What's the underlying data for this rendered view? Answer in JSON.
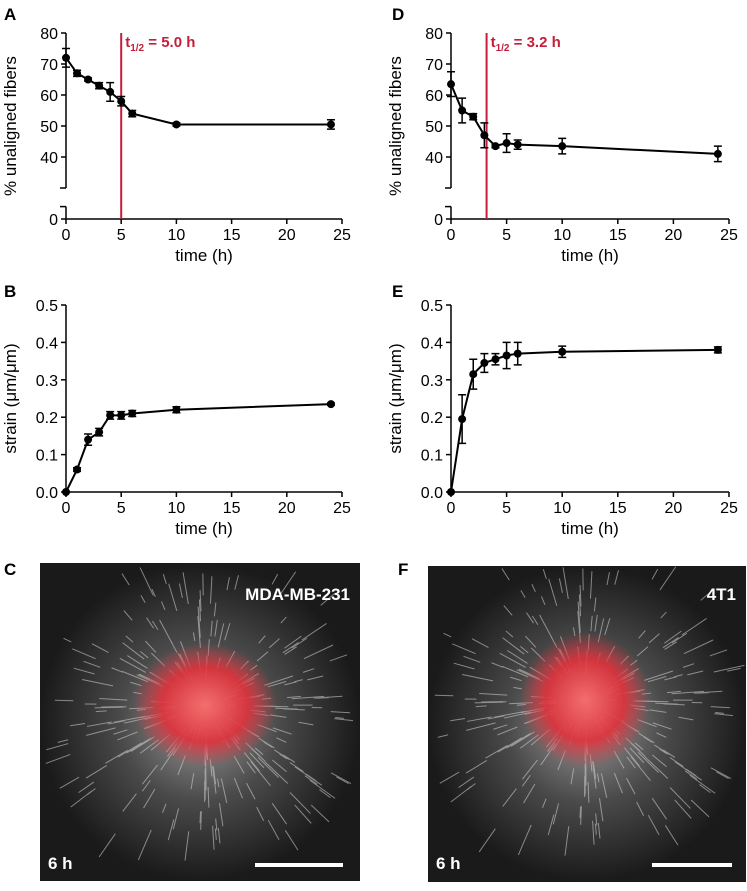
{
  "chart_data": [
    {
      "type": "line",
      "panel": "A",
      "x_label": "time (h)",
      "y_label": "% unaligned fibers",
      "color": "#000000",
      "x": [
        0,
        1,
        2,
        3,
        4,
        5,
        6,
        10,
        24
      ],
      "values": [
        72,
        67,
        65,
        63,
        61,
        58,
        54,
        50.5,
        50.5
      ],
      "errors": [
        3,
        1,
        0.5,
        1,
        3,
        1.5,
        1,
        0.5,
        1.5
      ],
      "xlim": [
        0,
        25
      ],
      "xticks": [
        0,
        5,
        10,
        15,
        20,
        25
      ],
      "ylim": [
        0,
        80
      ],
      "yticks": [
        0,
        40,
        50,
        60,
        70,
        80
      ],
      "axis_break": true,
      "annotation": {
        "label": "t",
        "subscript": "1/2",
        "suffix": " = 5.0 h",
        "x": 5,
        "color": "#c41e3a"
      }
    },
    {
      "type": "line",
      "panel": "B",
      "x_label": "time (h)",
      "y_label": "strain (μm/μm)",
      "color": "#000000",
      "x": [
        0,
        1,
        2,
        3,
        4,
        5,
        6,
        10,
        24
      ],
      "values": [
        0,
        0.06,
        0.14,
        0.16,
        0.205,
        0.205,
        0.21,
        0.22,
        0.235
      ],
      "errors": [
        0,
        0.005,
        0.015,
        0.01,
        0.01,
        0.01,
        0.008,
        0.008,
        0.003
      ],
      "xlim": [
        0,
        25
      ],
      "xticks": [
        0,
        5,
        10,
        15,
        20,
        25
      ],
      "ylim": [
        0,
        0.5
      ],
      "yticks": [
        {
          "value": 0,
          "label": "0.0"
        },
        0.1,
        0.2,
        0.3,
        0.4,
        0.5
      ],
      "axis_break": false
    },
    {
      "type": "line",
      "panel": "D",
      "x_label": "time (h)",
      "y_label": "% unaligned fibers",
      "color": "#000000",
      "x": [
        0,
        1,
        2,
        3,
        4,
        5,
        6,
        10,
        24
      ],
      "values": [
        63.5,
        55,
        53,
        47,
        43.5,
        44.5,
        44,
        43.5,
        41
      ],
      "errors": [
        4,
        4,
        1,
        4,
        0.5,
        3,
        1.5,
        2.5,
        2.5
      ],
      "xlim": [
        0,
        25
      ],
      "xticks": [
        0,
        5,
        10,
        15,
        20,
        25
      ],
      "ylim": [
        0,
        80
      ],
      "yticks": [
        0,
        40,
        50,
        60,
        70,
        80
      ],
      "axis_break": true,
      "annotation": {
        "label": "t",
        "subscript": "1/2",
        "suffix": " = 3.2 h",
        "x": 3.2,
        "color": "#c41e3a"
      }
    },
    {
      "type": "line",
      "panel": "E",
      "x_label": "time (h)",
      "y_label": "strain (μm/μm)",
      "color": "#000000",
      "x": [
        0,
        1,
        2,
        3,
        4,
        5,
        6,
        10,
        24
      ],
      "values": [
        0,
        0.195,
        0.315,
        0.345,
        0.355,
        0.365,
        0.37,
        0.375,
        0.38
      ],
      "errors": [
        0,
        0.065,
        0.04,
        0.025,
        0.015,
        0.035,
        0.03,
        0.015,
        0.008
      ],
      "xlim": [
        0,
        25
      ],
      "xticks": [
        0,
        5,
        10,
        15,
        20,
        25
      ],
      "ylim": [
        0,
        0.5
      ],
      "yticks": [
        {
          "value": 0,
          "label": "0.0"
        },
        0.1,
        0.2,
        0.3,
        0.4,
        0.5
      ],
      "axis_break": false
    }
  ],
  "images": [
    {
      "panel": "C",
      "label": "MDA-MB-231",
      "time": "6 h"
    },
    {
      "panel": "F",
      "label": "4T1",
      "time": "6 h"
    }
  ]
}
